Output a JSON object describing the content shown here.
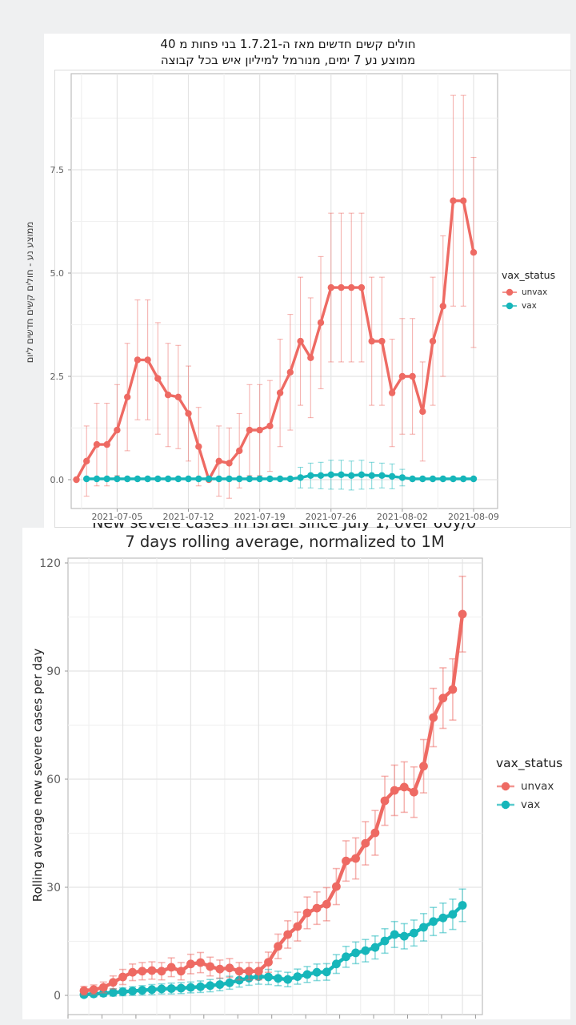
{
  "page_background": "#eff0f1",
  "colors": {
    "unvax": "#ee6a63",
    "vax": "#16b6ba",
    "grid_major": "#e4e4e4",
    "grid_minor": "#f1f1f1",
    "panel_border": "#bdbdbd",
    "tick_text": "#5f5f5f"
  },
  "chart_data": [
    {
      "type": "line",
      "title": "חולים קשים חדשים מאז ה-1.7.21 בני פחות מ 40",
      "subtitle": "ממוצע נע 7 ימים, מנורמל למיליון איש בכל קבוצה",
      "ylabel": "ממוצע נע - חולים קשים חדשים ליום",
      "legend_title": "vax_status",
      "legend_position": "right",
      "grid": true,
      "ylim": [
        0,
        9.8
      ],
      "y_ticks": [
        {
          "v": 0,
          "label": "0.0"
        },
        {
          "v": 2.5,
          "label": "2.5"
        },
        {
          "v": 5,
          "label": "5.0"
        },
        {
          "v": 7.5,
          "label": "7.5"
        }
      ],
      "y_minor": [
        1.25,
        3.75,
        6.25,
        8.75
      ],
      "x_tick_labels": [
        "2021-07-05",
        "2021-07-12",
        "2021-07-19",
        "2021-07-26",
        "2021-08-02",
        "2021-08-09"
      ],
      "x": [
        "2021-07-01",
        "2021-07-02",
        "2021-07-03",
        "2021-07-04",
        "2021-07-05",
        "2021-07-06",
        "2021-07-07",
        "2021-07-08",
        "2021-07-09",
        "2021-07-10",
        "2021-07-11",
        "2021-07-12",
        "2021-07-13",
        "2021-07-14",
        "2021-07-15",
        "2021-07-16",
        "2021-07-17",
        "2021-07-18",
        "2021-07-19",
        "2021-07-20",
        "2021-07-21",
        "2021-07-22",
        "2021-07-23",
        "2021-07-24",
        "2021-07-25",
        "2021-07-26",
        "2021-07-27",
        "2021-07-28",
        "2021-07-29",
        "2021-07-30",
        "2021-07-31",
        "2021-08-01",
        "2021-08-02",
        "2021-08-03",
        "2021-08-04",
        "2021-08-05",
        "2021-08-06",
        "2021-08-07",
        "2021-08-08",
        "2021-08-09"
      ],
      "series": [
        {
          "name": "unvax",
          "color": "#ee6a63",
          "values": [
            0,
            0.45,
            0.85,
            0.85,
            1.2,
            2.0,
            2.9,
            2.9,
            2.45,
            2.05,
            2.0,
            1.6,
            0.8,
            0,
            0.45,
            0.4,
            0.7,
            1.2,
            1.2,
            1.3,
            2.1,
            2.6,
            3.35,
            2.95,
            3.8,
            4.65,
            4.65,
            4.65,
            4.65,
            3.35,
            3.35,
            2.1,
            2.5,
            2.5,
            1.65,
            3.35,
            4.2,
            6.75,
            6.75,
            5.5
          ],
          "err": [
            0,
            0.85,
            1.0,
            1.0,
            1.1,
            1.3,
            1.45,
            1.45,
            1.35,
            1.25,
            1.25,
            1.15,
            0.95,
            0,
            0.85,
            0.85,
            0.9,
            1.1,
            1.1,
            1.1,
            1.3,
            1.4,
            1.55,
            1.45,
            1.6,
            1.8,
            1.8,
            1.8,
            1.8,
            1.55,
            1.55,
            1.3,
            1.4,
            1.4,
            1.2,
            1.55,
            1.7,
            2.55,
            2.55,
            2.3
          ]
        },
        {
          "name": "vax",
          "color": "#16b6ba",
          "values": [
            null,
            0.02,
            0.02,
            0.02,
            0.02,
            0.02,
            0.02,
            0.02,
            0.02,
            0.02,
            0.02,
            0.02,
            0.02,
            0.02,
            0.02,
            0.02,
            0.02,
            0.02,
            0.02,
            0.02,
            0.02,
            0.02,
            0.05,
            0.1,
            0.1,
            0.12,
            0.12,
            0.1,
            0.12,
            0.1,
            0.1,
            0.08,
            0.05,
            0.02,
            0.02,
            0.02,
            0.02,
            0.02,
            0.02,
            0.02
          ],
          "err": [
            0,
            0,
            0,
            0,
            0,
            0,
            0,
            0,
            0,
            0,
            0,
            0,
            0,
            0,
            0,
            0,
            0,
            0,
            0,
            0,
            0,
            0,
            0.25,
            0.3,
            0.32,
            0.35,
            0.35,
            0.35,
            0.35,
            0.32,
            0.3,
            0.3,
            0.2,
            0,
            0,
            0,
            0,
            0,
            0,
            0
          ]
        }
      ]
    },
    {
      "type": "line",
      "title": "New severe cases in Israel since July 1, over 60y/o",
      "subtitle": "7 days rolling average, normalized to 1M",
      "ylabel": "Rolling average new severe cases per day",
      "legend_title": "vax_status",
      "legend_position": "right",
      "grid": true,
      "ylim": [
        0,
        121
      ],
      "y_ticks": [
        {
          "v": 0,
          "label": "0"
        },
        {
          "v": 30,
          "label": "30"
        },
        {
          "v": 60,
          "label": "60"
        },
        {
          "v": 90,
          "label": "90"
        },
        {
          "v": 120,
          "label": "120"
        }
      ],
      "y_minor": [
        15,
        45,
        75,
        105
      ],
      "x_tick_labels": [],
      "x": [
        "2021-07-01",
        "2021-07-02",
        "2021-07-03",
        "2021-07-04",
        "2021-07-05",
        "2021-07-06",
        "2021-07-07",
        "2021-07-08",
        "2021-07-09",
        "2021-07-10",
        "2021-07-11",
        "2021-07-12",
        "2021-07-13",
        "2021-07-14",
        "2021-07-15",
        "2021-07-16",
        "2021-07-17",
        "2021-07-18",
        "2021-07-19",
        "2021-07-20",
        "2021-07-21",
        "2021-07-22",
        "2021-07-23",
        "2021-07-24",
        "2021-07-25",
        "2021-07-26",
        "2021-07-27",
        "2021-07-28",
        "2021-07-29",
        "2021-07-30",
        "2021-07-31",
        "2021-08-01",
        "2021-08-02",
        "2021-08-03",
        "2021-08-04",
        "2021-08-05",
        "2021-08-06",
        "2021-08-07",
        "2021-08-08",
        "2021-08-09"
      ],
      "series": [
        {
          "name": "unvax",
          "color": "#ee6a63",
          "values": [
            1.3,
            1.6,
            2.2,
            3.6,
            5.1,
            6.4,
            6.7,
            6.9,
            6.7,
            7.8,
            6.7,
            8.7,
            9.1,
            8.0,
            7.3,
            7.6,
            6.7,
            6.7,
            6.7,
            9.2,
            13.6,
            16.9,
            19.1,
            22.9,
            24.2,
            25.3,
            30.2,
            37.3,
            38.0,
            42.2,
            45.1,
            54.0,
            56.9,
            57.8,
            56.4,
            63.6,
            77.1,
            82.5,
            84.9,
            105.8
          ],
          "err": [
            1.2,
            1.3,
            1.5,
            1.8,
            2.1,
            2.3,
            2.4,
            2.4,
            2.4,
            2.6,
            2.4,
            2.7,
            2.8,
            2.6,
            2.5,
            2.6,
            2.4,
            2.4,
            2.4,
            2.8,
            3.4,
            3.8,
            4.0,
            4.4,
            4.5,
            4.6,
            5.0,
            5.6,
            5.7,
            6.0,
            6.2,
            6.8,
            7.0,
            7.0,
            7.0,
            7.4,
            8.1,
            8.4,
            8.5,
            10.5
          ]
        },
        {
          "name": "vax",
          "color": "#16b6ba",
          "values": [
            0.2,
            0.4,
            0.6,
            0.8,
            1.0,
            1.2,
            1.4,
            1.6,
            1.8,
            1.9,
            2.0,
            2.2,
            2.4,
            2.7,
            3.0,
            3.5,
            4.2,
            4.8,
            5.2,
            5.1,
            4.7,
            4.4,
            5.2,
            5.8,
            6.4,
            6.5,
            8.7,
            10.7,
            11.8,
            12.4,
            13.3,
            15.1,
            16.9,
            16.4,
            17.3,
            18.9,
            20.5,
            21.5,
            22.5,
            25.0
          ],
          "err": [
            0.7,
            0.8,
            0.9,
            1.0,
            1.1,
            1.2,
            1.3,
            1.4,
            1.4,
            1.5,
            1.5,
            1.5,
            1.6,
            1.7,
            1.7,
            1.8,
            1.9,
            2.0,
            2.1,
            2.1,
            2.0,
            2.0,
            2.1,
            2.2,
            2.3,
            2.3,
            2.6,
            2.9,
            3.0,
            3.1,
            3.2,
            3.4,
            3.6,
            3.5,
            3.6,
            3.8,
            3.9,
            4.1,
            4.2,
            4.5
          ]
        }
      ]
    }
  ]
}
